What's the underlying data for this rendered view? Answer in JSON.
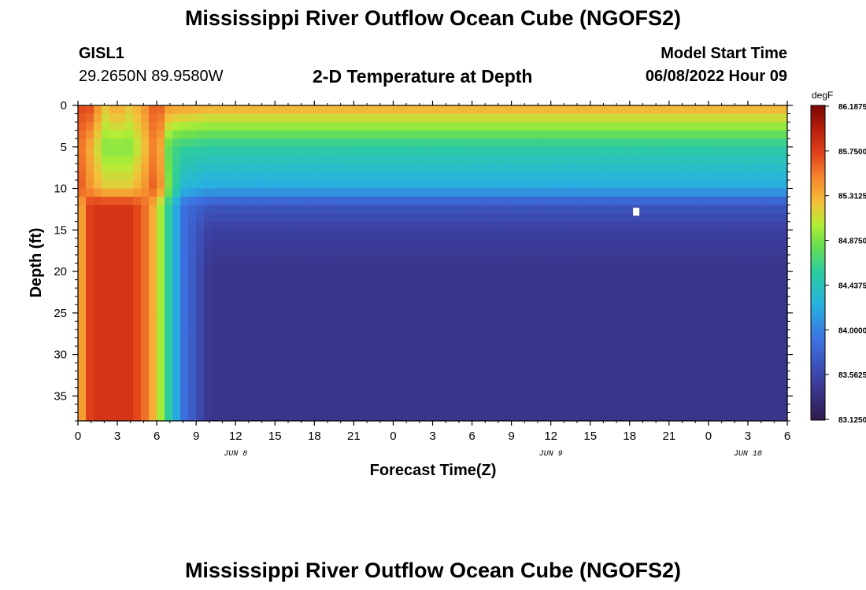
{
  "title": "Mississippi River Outflow Ocean Cube (NGOFS2)",
  "station": {
    "id": "GISL1",
    "coords": "29.2650N  89.9580W"
  },
  "subtitle": "2-D Temperature at Depth",
  "model_start": {
    "label": "Model Start Time",
    "value": "06/08/2022 Hour 09"
  },
  "footer_title": "Mississippi River Outflow Ocean Cube (NGOFS2)",
  "chart_data": {
    "type": "heatmap",
    "xlabel": "Forecast Time(Z)",
    "ylabel": "Depth (ft)",
    "x_unit": "hours since 06/08/2022 00Z",
    "xlim": [
      0,
      54
    ],
    "ylim": [
      38,
      0
    ],
    "x_ticks": [
      "0",
      "3",
      "6",
      "9",
      "12",
      "15",
      "18",
      "21",
      "0",
      "3",
      "6",
      "9",
      "12",
      "15",
      "18",
      "21",
      "0",
      "3",
      "6"
    ],
    "y_ticks": [
      "0",
      "5",
      "10",
      "15",
      "20",
      "25",
      "30",
      "35"
    ],
    "date_labels": [
      {
        "text": "JUN 8",
        "x": 12
      },
      {
        "text": "JUN 9",
        "x": 36
      },
      {
        "text": "JUN 10",
        "x": 51
      }
    ],
    "colorbar": {
      "unit": "degF",
      "min": 83.125,
      "max": 86.1875,
      "tick_labels": [
        "86.1875",
        "85.7500",
        "85.3125",
        "84.8750",
        "84.4375",
        "84.0000",
        "83.5625",
        "83.1250"
      ]
    },
    "marker": {
      "x": 42.5,
      "y": 12.8
    },
    "depths_ft": [
      0,
      5,
      10,
      12,
      15,
      20,
      25,
      30,
      35,
      38
    ],
    "times_h": [
      0,
      1,
      2,
      3,
      4,
      5,
      6,
      7,
      8,
      10,
      12,
      15,
      18,
      20,
      22,
      24,
      25,
      26,
      27,
      28,
      30,
      32,
      34,
      36,
      38,
      40,
      42,
      44,
      46,
      48,
      50,
      52,
      54
    ],
    "values_degF": [
      [
        85.7,
        85.7,
        85.2,
        85.4,
        85.2,
        85.4,
        85.7,
        85.4,
        85.4,
        85.35,
        85.35,
        85.35,
        85.35,
        85.35,
        85.35,
        85.35,
        85.35,
        85.35,
        85.35,
        85.35,
        85.35,
        85.35,
        85.35,
        85.35,
        85.35,
        85.35,
        85.35,
        85.35,
        85.35,
        85.35,
        85.35,
        85.35,
        85.35
      ],
      [
        85.6,
        85.3,
        84.9,
        84.9,
        84.9,
        85.2,
        85.6,
        84.7,
        84.6,
        84.55,
        84.55,
        84.55,
        84.55,
        84.55,
        84.55,
        84.55,
        84.55,
        84.55,
        84.55,
        84.55,
        84.55,
        84.55,
        84.55,
        84.55,
        84.55,
        84.55,
        84.55,
        84.55,
        84.55,
        84.55,
        84.55,
        84.55,
        84.55
      ],
      [
        85.7,
        85.4,
        85.2,
        85.2,
        85.2,
        85.4,
        85.7,
        84.8,
        84.3,
        84.2,
        84.2,
        84.2,
        84.2,
        84.2,
        84.2,
        84.2,
        84.2,
        84.2,
        84.2,
        84.2,
        84.2,
        84.2,
        84.2,
        84.2,
        84.2,
        84.2,
        84.2,
        84.2,
        84.2,
        84.2,
        84.2,
        84.2,
        84.2
      ],
      [
        85.2,
        85.8,
        85.8,
        85.8,
        85.8,
        85.6,
        85.2,
        84.5,
        83.9,
        83.7,
        83.7,
        83.7,
        83.7,
        83.7,
        83.7,
        83.7,
        83.7,
        83.7,
        83.7,
        83.7,
        83.7,
        83.7,
        83.7,
        83.7,
        83.7,
        83.7,
        83.7,
        83.7,
        83.7,
        83.7,
        83.7,
        83.7,
        83.7
      ],
      [
        85.2,
        85.8,
        85.8,
        85.8,
        85.8,
        85.6,
        85.2,
        84.5,
        83.9,
        83.5,
        83.5,
        83.5,
        83.5,
        83.5,
        83.5,
        83.5,
        83.5,
        83.5,
        83.5,
        83.5,
        83.5,
        83.5,
        83.5,
        83.5,
        83.5,
        83.5,
        83.5,
        83.5,
        83.5,
        83.5,
        83.5,
        83.5,
        83.5
      ],
      [
        85.2,
        85.8,
        85.8,
        85.8,
        85.8,
        85.6,
        85.2,
        84.5,
        83.9,
        83.4,
        83.4,
        83.4,
        83.4,
        83.4,
        83.4,
        83.4,
        83.4,
        83.4,
        83.4,
        83.4,
        83.4,
        83.4,
        83.4,
        83.4,
        83.4,
        83.4,
        83.4,
        83.4,
        83.4,
        83.4,
        83.4,
        83.4,
        83.4
      ],
      [
        85.2,
        85.8,
        85.8,
        85.8,
        85.8,
        85.6,
        85.2,
        84.5,
        83.9,
        83.4,
        83.4,
        83.4,
        83.4,
        83.4,
        83.4,
        83.4,
        83.4,
        83.4,
        83.4,
        83.4,
        83.4,
        83.4,
        83.4,
        83.4,
        83.4,
        83.4,
        83.4,
        83.4,
        83.4,
        83.4,
        83.4,
        83.4,
        83.4
      ],
      [
        85.2,
        85.8,
        85.8,
        85.8,
        85.8,
        85.6,
        85.2,
        84.5,
        83.9,
        83.4,
        83.4,
        83.4,
        83.4,
        83.4,
        83.4,
        83.4,
        83.4,
        83.4,
        83.4,
        83.4,
        83.4,
        83.4,
        83.4,
        83.4,
        83.4,
        83.4,
        83.4,
        83.4,
        83.4,
        83.4,
        83.4,
        83.4,
        83.4
      ],
      [
        85.2,
        85.8,
        85.8,
        85.8,
        85.8,
        85.6,
        85.2,
        84.5,
        83.9,
        83.4,
        83.4,
        83.4,
        83.4,
        83.4,
        83.4,
        83.4,
        83.4,
        83.4,
        83.4,
        83.4,
        83.4,
        83.4,
        83.4,
        83.4,
        83.4,
        83.4,
        83.4,
        83.4,
        83.4,
        83.4,
        83.4,
        83.4,
        83.4
      ],
      [
        85.2,
        85.8,
        85.8,
        85.8,
        85.8,
        85.6,
        85.2,
        84.5,
        83.9,
        83.4,
        83.4,
        83.4,
        83.4,
        83.4,
        83.4,
        83.4,
        83.4,
        83.4,
        83.4,
        83.4,
        83.4,
        83.4,
        83.4,
        83.4,
        83.4,
        83.4,
        83.4,
        83.4,
        83.4,
        83.4,
        83.4,
        83.4,
        83.4
      ]
    ]
  }
}
